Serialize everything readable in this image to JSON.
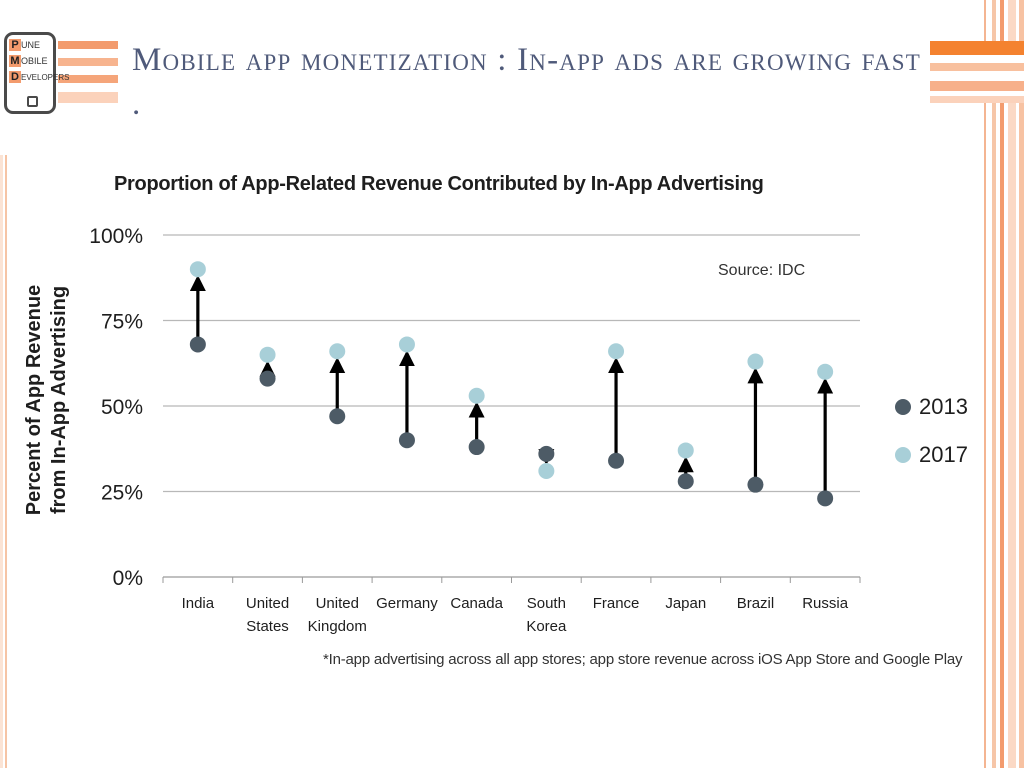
{
  "slide": {
    "title": "Mobile app monetization : In-app ads are growing fast ."
  },
  "logo": {
    "line1_cap": "P",
    "line1_rest": "UNE",
    "line2_cap": "M",
    "line2_rest": "OBILE",
    "line3_cap": "D",
    "line3_rest": "EVELOPERS"
  },
  "colors": {
    "series_2013": "#4d5b66",
    "series_2017": "#a8cfd8",
    "title_text": "#4f5a7a",
    "accent": "#f39b6d"
  },
  "source_note": "Source: IDC",
  "footnote": "*In-app advertising across all app stores; app store revenue across iOS App Store and Google Play",
  "chart_data": {
    "type": "scatter",
    "title": "Proportion of App-Related Revenue Contributed by In-App Advertising",
    "ylabel_line1": "Percent of App Revenue",
    "ylabel_line2": "from In-App Advertising",
    "xlabel": "",
    "ylim": [
      0,
      100
    ],
    "yticks": [
      0,
      25,
      50,
      75,
      100
    ],
    "ytick_labels": [
      "0%",
      "25%",
      "50%",
      "75%",
      "100%"
    ],
    "grid": true,
    "legend_position": "right",
    "categories": [
      [
        "India"
      ],
      [
        "United",
        "States"
      ],
      [
        "United",
        "Kingdom"
      ],
      [
        "Germany"
      ],
      [
        "Canada"
      ],
      [
        "South",
        "Korea"
      ],
      [
        "France"
      ],
      [
        "Japan"
      ],
      [
        "Brazil"
      ],
      [
        "Russia"
      ]
    ],
    "series": [
      {
        "name": "2013",
        "values": [
          68,
          58,
          47,
          40,
          38,
          36,
          34,
          28,
          27,
          23
        ]
      },
      {
        "name": "2017",
        "values": [
          90,
          65,
          66,
          68,
          53,
          31,
          66,
          37,
          63,
          60
        ]
      }
    ],
    "arrows": "from 2013 to 2017 value"
  }
}
